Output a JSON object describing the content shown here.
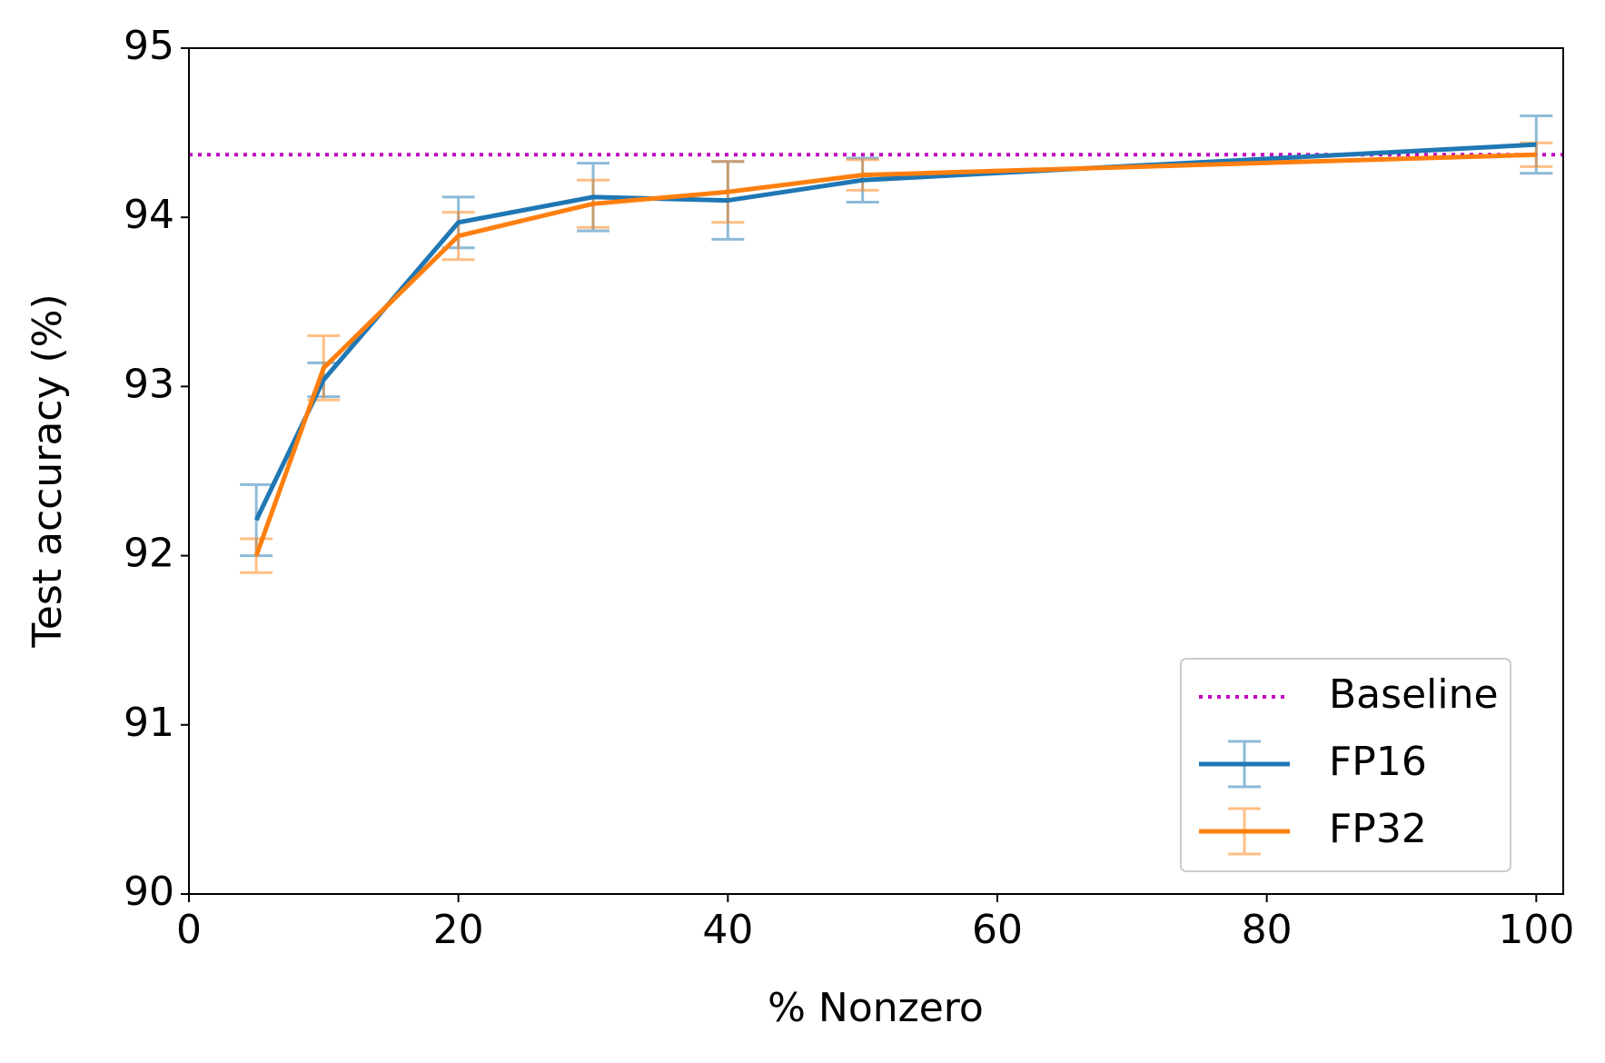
{
  "chart_data": {
    "type": "errorbar-line",
    "xlabel": "% Nonzero",
    "ylabel": "Test accuracy (%)",
    "x": [
      5,
      10,
      20,
      30,
      40,
      50,
      100
    ],
    "series": [
      {
        "name": "FP16",
        "color": "#1f77b4",
        "values": [
          92.21,
          93.04,
          93.97,
          94.12,
          94.1,
          94.22,
          94.43
        ],
        "errors": [
          0.21,
          0.1,
          0.15,
          0.2,
          0.23,
          0.13,
          0.17
        ]
      },
      {
        "name": "FP32",
        "color": "#ff7f0e",
        "values": [
          92.0,
          93.11,
          93.89,
          94.08,
          94.15,
          94.25,
          94.37
        ],
        "errors": [
          0.1,
          0.19,
          0.14,
          0.14,
          0.18,
          0.09,
          0.07
        ]
      }
    ],
    "baseline": {
      "name": "Baseline",
      "color": "#bf00bf",
      "value": 94.37
    },
    "xlim": [
      0,
      102
    ],
    "ylim": [
      90,
      95
    ],
    "xticks": [
      0,
      20,
      40,
      60,
      80,
      100
    ],
    "yticks": [
      90,
      91,
      92,
      93,
      94,
      95
    ],
    "legend": "lower right"
  }
}
